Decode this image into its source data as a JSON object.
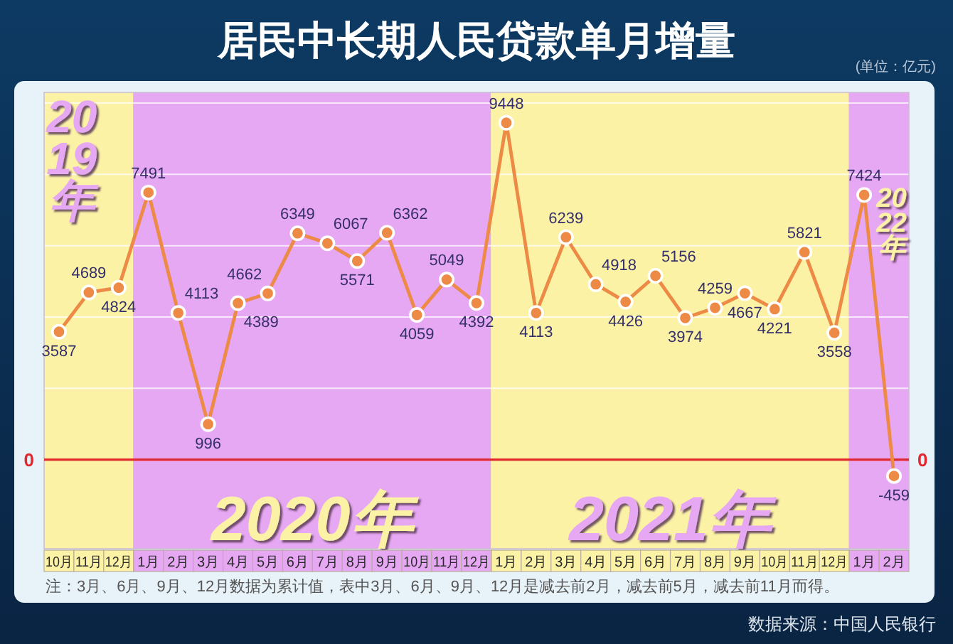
{
  "chart_data": {
    "type": "line",
    "title": "居民中长期人民贷款单月增量",
    "x": [
      "2019-10",
      "2019-11",
      "2019-12",
      "2020-01",
      "2020-02",
      "2020-03",
      "2020-04",
      "2020-05",
      "2020-06",
      "2020-07",
      "2020-08",
      "2020-09",
      "2020-10",
      "2020-11",
      "2020-12",
      "2021-01",
      "2021-02",
      "2021-03",
      "2021-04",
      "2021-05",
      "2021-06",
      "2021-07",
      "2021-08",
      "2021-09",
      "2021-10",
      "2021-11",
      "2021-12",
      "2022-01",
      "2022-02"
    ],
    "xlim": [
      "2019-09-16",
      "2022-02-15"
    ],
    "xticks": [
      {
        "value": "2019-10",
        "label": "10月"
      },
      {
        "value": "2019-11",
        "label": "11月"
      },
      {
        "value": "2019-12",
        "label": "12月"
      },
      {
        "value": "2020-01",
        "label": "1月"
      },
      {
        "value": "2020-02",
        "label": "2月"
      },
      {
        "value": "2020-03",
        "label": "3月"
      },
      {
        "value": "2020-04",
        "label": "4月"
      },
      {
        "value": "2020-05",
        "label": "5月"
      },
      {
        "value": "2020-06",
        "label": "6月"
      },
      {
        "value": "2020-07",
        "label": "7月"
      },
      {
        "value": "2020-08",
        "label": "8月"
      },
      {
        "value": "2020-09",
        "label": "9月"
      },
      {
        "value": "2020-10",
        "label": "10月"
      },
      {
        "value": "2020-11",
        "label": "11月"
      },
      {
        "value": "2020-12",
        "label": "12月"
      },
      {
        "value": "2021-01",
        "label": "1月"
      },
      {
        "value": "2021-02",
        "label": "2月"
      },
      {
        "value": "2021-03",
        "label": "3月"
      },
      {
        "value": "2021-04",
        "label": "4月"
      },
      {
        "value": "2021-05",
        "label": "5月"
      },
      {
        "value": "2021-06",
        "label": "6月"
      },
      {
        "value": "2021-07",
        "label": "7月"
      },
      {
        "value": "2021-08",
        "label": "8月"
      },
      {
        "value": "2021-09",
        "label": "9月"
      },
      {
        "value": "2021-10",
        "label": "10月"
      },
      {
        "value": "2021-11",
        "label": "11月"
      },
      {
        "value": "2021-12",
        "label": "12月"
      },
      {
        "value": "2022-01",
        "label": "1月"
      },
      {
        "value": "2022-02",
        "label": "2月"
      }
    ],
    "ylim": [
      -2500,
      10300
    ],
    "yticks": [
      {
        "value": 0,
        "label": null
      },
      {
        "value": 2000,
        "label": null
      },
      {
        "value": 4000,
        "label": null
      },
      {
        "value": 6000,
        "label": null
      },
      {
        "value": 8000,
        "label": null
      },
      {
        "value": 10000,
        "label": null
      }
    ],
    "tick_labels": "x",
    "grid": "y",
    "series": [
      {
        "color": "#ec8a46",
        "values": [
          3587,
          4689,
          4824,
          7491,
          4113,
          996,
          4389,
          4662,
          6349,
          6067,
          5571,
          6362,
          4059,
          5049,
          4392,
          9448,
          4113,
          6239,
          4918,
          4426,
          5156,
          3974,
          4259,
          4667,
          4221,
          5821,
          3558,
          7424,
          -459
        ]
      }
    ],
    "marker": "circle",
    "line_style": "solid",
    "data_labels": true,
    "ref_lines": [
      {
        "axis": "y",
        "value": 0,
        "label": "0",
        "color": "#e0282e"
      }
    ],
    "bands": [
      {
        "axis": "x",
        "from": "2019-09-16",
        "to": "2019-12-16",
        "label": "2019年",
        "color": "#fbf2a6"
      },
      {
        "axis": "x",
        "from": "2019-12-16",
        "to": "2020-12-16",
        "label": "2020年",
        "color": "#e6a7f3"
      },
      {
        "axis": "x",
        "from": "2020-12-16",
        "to": "2021-12-16",
        "label": "2021年",
        "color": "#fbf2a6"
      },
      {
        "axis": "x",
        "from": "2021-12-16",
        "to": "2022-02-15",
        "label": "2022年",
        "color": "#e6a7f3"
      }
    ],
    "annotations": [
      "(单位：亿元)",
      "注：3月、6月、9月、12月数据为累计值，表中3月、6月、9月、12月是减去前2月，减去前5月，减去前11月而得。",
      "数据来源：中国人民银行"
    ]
  }
}
